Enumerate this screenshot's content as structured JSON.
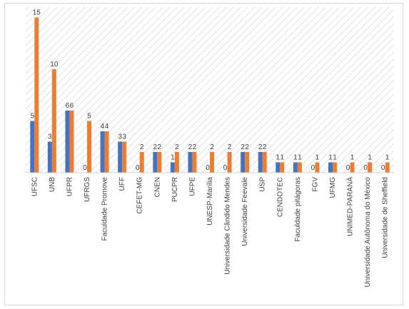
{
  "chart_data": {
    "type": "bar",
    "categories": [
      "UFSC",
      "UNB",
      "UFPR",
      "UFRGS",
      "Faculdade Promove",
      "UFF",
      "CEFET-MG",
      "CNEN",
      "PUCPR",
      "UFPE",
      "UNESP-Marília",
      "Universidade Cândido Mendes",
      "Universidade Feevale",
      "USP",
      "CENDOTEC",
      "Faculdade pitágoras",
      "FGV",
      "UFMG",
      "UNIMED-PARANÁ",
      "Universidade Autônoma do México",
      "Universidade de Sheffield"
    ],
    "series": [
      {
        "values": [
          5,
          3,
          6,
          0,
          4,
          3,
          0,
          2,
          1,
          2,
          0,
          0,
          2,
          2,
          1,
          1,
          0,
          1,
          0,
          0,
          0
        ],
        "color": "#4472C4"
      },
      {
        "values": [
          15,
          10,
          6,
          5,
          4,
          3,
          2,
          2,
          2,
          2,
          2,
          2,
          2,
          2,
          1,
          1,
          1,
          1,
          1,
          1,
          1
        ],
        "color": "#ED7D31"
      }
    ],
    "ylim": [
      0,
      16
    ],
    "grid": false,
    "background_pattern": "diagonal-hatch",
    "legend": "none",
    "data_labels": true,
    "category_label_rotation": -90
  }
}
